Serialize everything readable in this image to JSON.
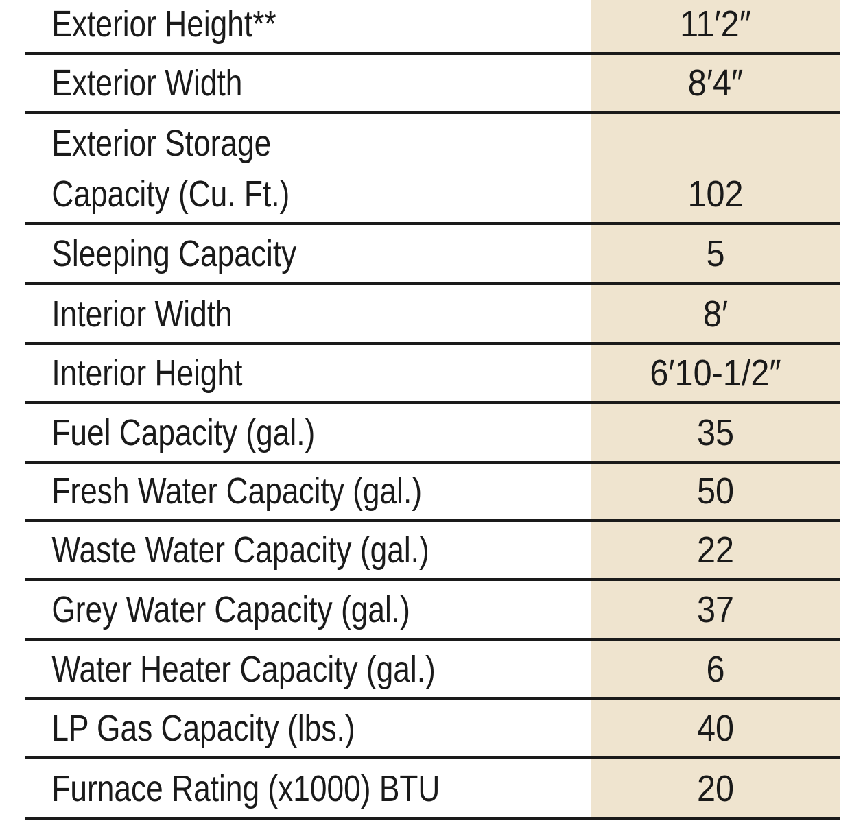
{
  "specs": [
    {
      "label": "Exterior Height**",
      "value": "11′2″"
    },
    {
      "label": "Exterior Width",
      "value": "8′4″"
    },
    {
      "label": "Exterior Storage\nCapacity (Cu. Ft.)",
      "value": "102"
    },
    {
      "label": "Sleeping Capacity",
      "value": "5"
    },
    {
      "label": "Interior Width",
      "value": "8′"
    },
    {
      "label": "Interior Height",
      "value": "6′10-1/2″"
    },
    {
      "label": "Fuel Capacity (gal.)",
      "value": "35"
    },
    {
      "label": "Fresh Water Capacity (gal.)",
      "value": "50"
    },
    {
      "label": "Waste Water Capacity (gal.)",
      "value": "22"
    },
    {
      "label": "Grey Water Capacity (gal.)",
      "value": "37"
    },
    {
      "label": "Water Heater Capacity (gal.)",
      "value": "6"
    },
    {
      "label": "LP Gas Capacity (lbs.)",
      "value": "40"
    },
    {
      "label": "Furnace Rating (x1000) BTU",
      "value": "20"
    }
  ],
  "colors": {
    "value_column_background": "#efe4cf",
    "rule_lines": "#1a1a1a",
    "text": "#1a1a1a"
  }
}
